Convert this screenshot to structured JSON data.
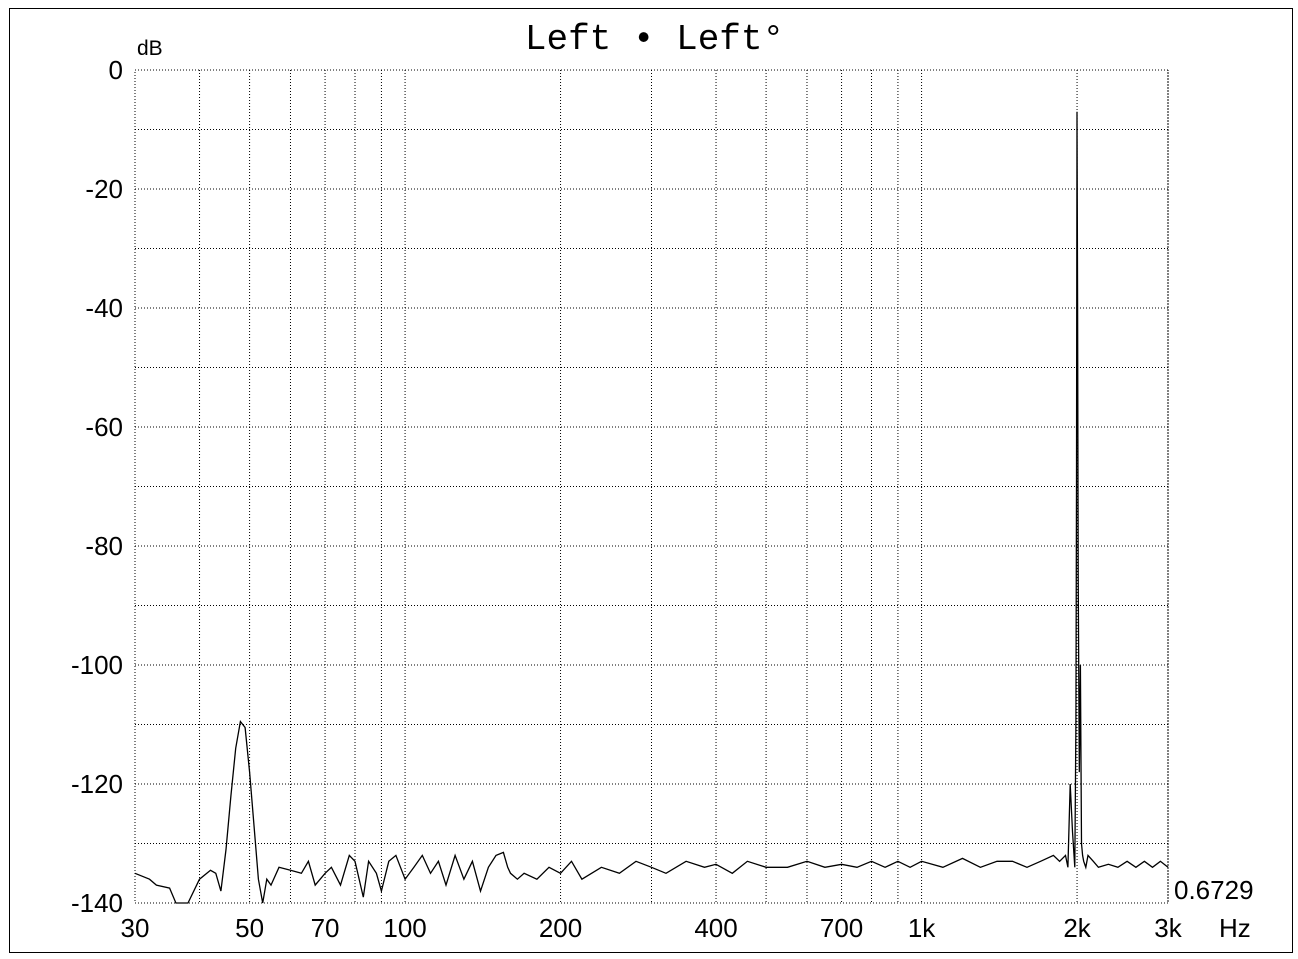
{
  "chart_data": {
    "type": "line",
    "title": "Left • Left°",
    "ylabel": "dB",
    "xlabel": "Hz",
    "x_scale": "log",
    "xlim": [
      30,
      3000
    ],
    "ylim": [
      -140,
      0
    ],
    "x_ticks": [
      {
        "value": 30,
        "label": "30"
      },
      {
        "value": 50,
        "label": "50"
      },
      {
        "value": 70,
        "label": "70"
      },
      {
        "value": 100,
        "label": "100"
      },
      {
        "value": 200,
        "label": "200"
      },
      {
        "value": 400,
        "label": "400"
      },
      {
        "value": 700,
        "label": "700"
      },
      {
        "value": 1000,
        "label": "1k"
      },
      {
        "value": 2000,
        "label": "2k"
      },
      {
        "value": 3000,
        "label": "3k"
      }
    ],
    "x_gridlines": [
      40,
      50,
      60,
      70,
      80,
      90,
      100,
      200,
      300,
      400,
      500,
      600,
      700,
      800,
      900,
      1000,
      2000,
      3000
    ],
    "y_ticks": [
      0,
      -20,
      -40,
      -60,
      -80,
      -100,
      -120,
      -140
    ],
    "y_gridlines": [
      0,
      -10,
      -20,
      -30,
      -40,
      -50,
      -60,
      -70,
      -80,
      -90,
      -100,
      -110,
      -120,
      -130,
      -140
    ],
    "grid": true,
    "corner_value": "0.6729",
    "series": [
      {
        "x": [
          30,
          32,
          33,
          35,
          36,
          38,
          40,
          42,
          43,
          44,
          45,
          46,
          47,
          48,
          49,
          50,
          51,
          52,
          53,
          54,
          55,
          57,
          60,
          63,
          65,
          67,
          70,
          72,
          75,
          78,
          80,
          83,
          85,
          88,
          90,
          93,
          96,
          100,
          104,
          108,
          112,
          116,
          120,
          125,
          130,
          135,
          140,
          145,
          150,
          155,
          158,
          160,
          165,
          170,
          180,
          190,
          200,
          210,
          220,
          240,
          260,
          280,
          300,
          320,
          350,
          380,
          400,
          430,
          460,
          500,
          550,
          600,
          650,
          700,
          750,
          800,
          850,
          900,
          950,
          1000,
          1100,
          1200,
          1300,
          1400,
          1500,
          1600,
          1700,
          1800,
          1850,
          1900,
          1920,
          1940,
          1960,
          1980,
          1990,
          1995,
          2000,
          2005,
          2010,
          2020,
          2030,
          2040,
          2050,
          2060,
          2080,
          2100,
          2150,
          2200,
          2300,
          2400,
          2500,
          2600,
          2700,
          2800,
          2900,
          3000
        ],
        "y": [
          -135,
          -136,
          -137,
          -137.5,
          -140,
          -140,
          -136,
          -134.5,
          -135,
          -138,
          -131,
          -122,
          -114,
          -109.5,
          -110.5,
          -118,
          -127,
          -136,
          -140,
          -136,
          -137,
          -134,
          -134.5,
          -135,
          -133,
          -137,
          -135,
          -134,
          -137,
          -132,
          -133,
          -139,
          -133,
          -135,
          -138,
          -133,
          -132,
          -136,
          -134,
          -132,
          -135,
          -133,
          -137,
          -132,
          -136,
          -133,
          -138,
          -134,
          -132,
          -131.5,
          -134,
          -135,
          -136,
          -135,
          -136,
          -134,
          -135,
          -133,
          -136,
          -134,
          -135,
          -133,
          -134,
          -135,
          -133,
          -134,
          -133.5,
          -135,
          -133,
          -134,
          -134,
          -133,
          -134,
          -133.5,
          -134,
          -133,
          -134,
          -133,
          -134,
          -133,
          -134,
          -132.5,
          -134,
          -133,
          -133,
          -134,
          -133,
          -132,
          -133,
          -132,
          -134,
          -120,
          -128,
          -134,
          -110,
          -70,
          -7,
          -40,
          -85,
          -118,
          -100,
          -130,
          -132,
          -133,
          -134,
          -132,
          -133,
          -134,
          -133.5,
          -134,
          -133,
          -134,
          -133,
          -134,
          -133,
          -134
        ]
      }
    ]
  }
}
